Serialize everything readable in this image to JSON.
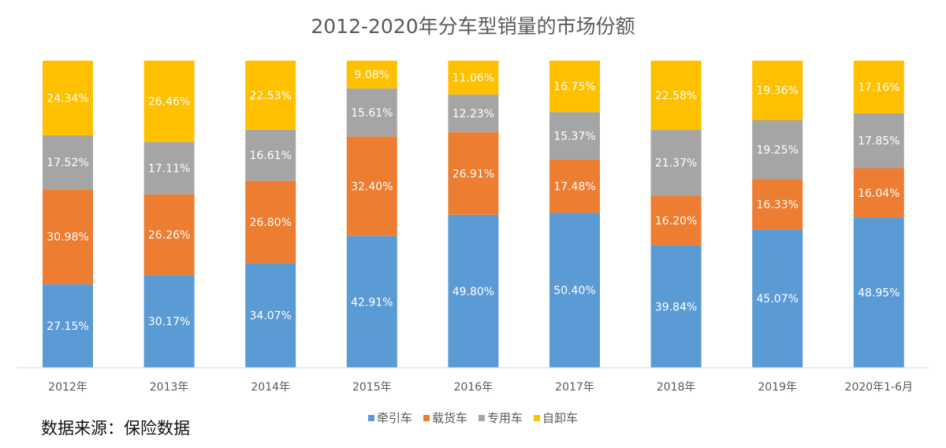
{
  "chart_data": {
    "type": "bar",
    "stacked": true,
    "title": "2012-2020年分车型销量的市场份额",
    "categories": [
      "2012年",
      "2013年",
      "2014年",
      "2015年",
      "2016年",
      "2017年",
      "2018年",
      "2019年",
      "2020年1-6月"
    ],
    "series": [
      {
        "name": "牵引车",
        "color": "#5b9bd5",
        "values": [
          27.15,
          30.17,
          34.07,
          42.91,
          49.8,
          50.4,
          39.84,
          45.07,
          48.95
        ],
        "labels": [
          "27.15%",
          "30.17%",
          "34.07%",
          "42.91%",
          "49.80%",
          "50.40%",
          "39.84%",
          "45.07%",
          "48.95%"
        ]
      },
      {
        "name": "载货车",
        "color": "#ed7d31",
        "values": [
          30.98,
          26.26,
          26.8,
          32.4,
          26.91,
          17.48,
          16.2,
          16.33,
          16.04
        ],
        "labels": [
          "30.98%",
          "26.26%",
          "26.80%",
          "32.40%",
          "26.91%",
          "17.48%",
          "16.20%",
          "16.33%",
          "16.04%"
        ]
      },
      {
        "name": "专用车",
        "color": "#a5a5a5",
        "values": [
          17.52,
          17.11,
          16.61,
          15.61,
          12.23,
          15.37,
          21.37,
          19.25,
          17.85
        ],
        "labels": [
          "17.52%",
          "17.11%",
          "16.61%",
          "15.61%",
          "12.23%",
          "15.37%",
          "21.37%",
          "19.25%",
          "17.85%"
        ]
      },
      {
        "name": "自卸车",
        "color": "#ffc000",
        "values": [
          24.34,
          26.46,
          22.53,
          9.08,
          11.06,
          16.75,
          22.58,
          19.36,
          17.16
        ],
        "labels": [
          "24.34%",
          "26.46%",
          "22.53%",
          "9.08%",
          "11.06%",
          "16.75%",
          "22.58%",
          "19.36%",
          "17.16%"
        ]
      }
    ],
    "ylim": [
      0,
      100
    ],
    "grid": false,
    "legend_position": "bottom"
  },
  "source_note": "数据来源：保险数据"
}
